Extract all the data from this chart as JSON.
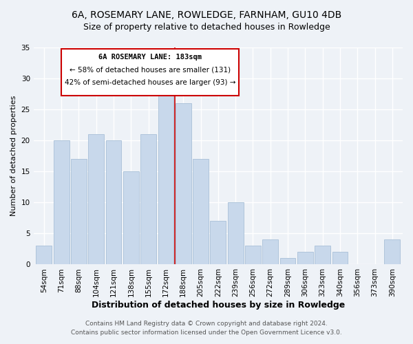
{
  "title": "6A, ROSEMARY LANE, ROWLEDGE, FARNHAM, GU10 4DB",
  "subtitle": "Size of property relative to detached houses in Rowledge",
  "xlabel": "Distribution of detached houses by size in Rowledge",
  "ylabel": "Number of detached properties",
  "bar_color": "#c8d8eb",
  "bar_edgecolor": "#afc5db",
  "categories": [
    "54sqm",
    "71sqm",
    "88sqm",
    "104sqm",
    "121sqm",
    "138sqm",
    "155sqm",
    "172sqm",
    "188sqm",
    "205sqm",
    "222sqm",
    "239sqm",
    "256sqm",
    "272sqm",
    "289sqm",
    "306sqm",
    "323sqm",
    "340sqm",
    "356sqm",
    "373sqm",
    "390sqm"
  ],
  "values": [
    3,
    20,
    17,
    21,
    20,
    15,
    21,
    28,
    26,
    17,
    7,
    10,
    3,
    4,
    1,
    2,
    3,
    2,
    0,
    0,
    4
  ],
  "ylim": [
    0,
    35
  ],
  "yticks": [
    0,
    5,
    10,
    15,
    20,
    25,
    30,
    35
  ],
  "property_line_x": 7.5,
  "property_label": "6A ROSEMARY LANE: 183sqm",
  "annotation_line1": "← 58% of detached houses are smaller (131)",
  "annotation_line2": "42% of semi-detached houses are larger (93) →",
  "box_color": "#ffffff",
  "box_edgecolor": "#cc0000",
  "line_color": "#cc0000",
  "footer1": "Contains HM Land Registry data © Crown copyright and database right 2024.",
  "footer2": "Contains public sector information licensed under the Open Government Licence v3.0.",
  "background_color": "#eef2f7",
  "title_fontsize": 10,
  "subtitle_fontsize": 9,
  "xlabel_fontsize": 9,
  "ylabel_fontsize": 8,
  "tick_fontsize": 7.5,
  "footer_fontsize": 6.5,
  "annot_fontsize": 7.5
}
